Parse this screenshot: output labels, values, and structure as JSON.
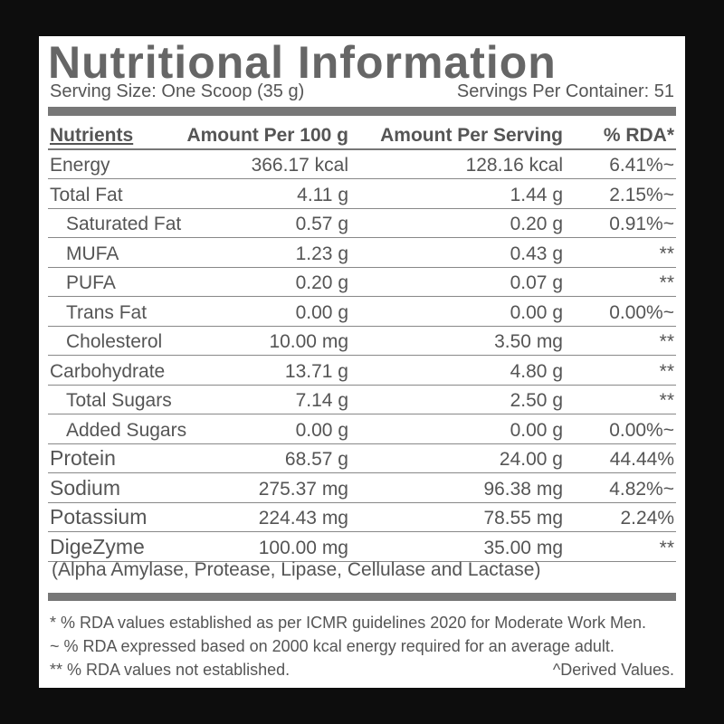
{
  "title": "Nutritional Information",
  "serving_size": "Serving Size: One Scoop (35 g)",
  "servings_per_container": "Servings Per Container: 51",
  "header": [
    "Nutrients",
    "Amount Per 100 g",
    "Amount Per Serving",
    "% RDA*"
  ],
  "rows": [
    [
      "Energy",
      "366.17 kcal",
      "128.16 kcal",
      "6.41%~"
    ],
    [
      "Total Fat",
      "4.11 g",
      "1.44 g",
      "2.15%~"
    ],
    [
      "Saturated Fat",
      "0.57 g",
      "0.20 g",
      "0.91%~"
    ],
    [
      "MUFA",
      "1.23 g",
      "0.43 g",
      "**"
    ],
    [
      "PUFA",
      "0.20 g",
      "0.07 g",
      "**"
    ],
    [
      "Trans Fat",
      "0.00 g",
      "0.00 g",
      "0.00%~"
    ],
    [
      "Cholesterol",
      "10.00 mg",
      "3.50 mg",
      "**"
    ],
    [
      "Carbohydrate",
      "13.71 g",
      "4.80 g",
      "**"
    ],
    [
      "Total Sugars",
      "7.14 g",
      "2.50 g",
      "**"
    ],
    [
      "Added Sugars",
      "0.00 g",
      "0.00 g",
      "0.00%~"
    ],
    [
      "Protein",
      "68.57 g",
      "24.00 g",
      "44.44%"
    ],
    [
      "Sodium",
      "275.37 mg",
      "96.38 mg",
      "4.82%~"
    ],
    [
      "Potassium",
      "224.43 mg",
      "78.55 mg",
      "2.24%"
    ],
    [
      "DigeZyme",
      "100.00 mg",
      "35.00 mg",
      "**"
    ]
  ],
  "note": "(Alpha Amylase, Protease, Lipase, Cellulase and Lactase)",
  "footnotes": [
    "* % RDA values established as per ICMR guidelines 2020 for Moderate Work Men.",
    "~ % RDA expressed based on 2000 kcal energy required for an average adult.",
    "** % RDA values not established."
  ],
  "derived": "^Derived Values."
}
